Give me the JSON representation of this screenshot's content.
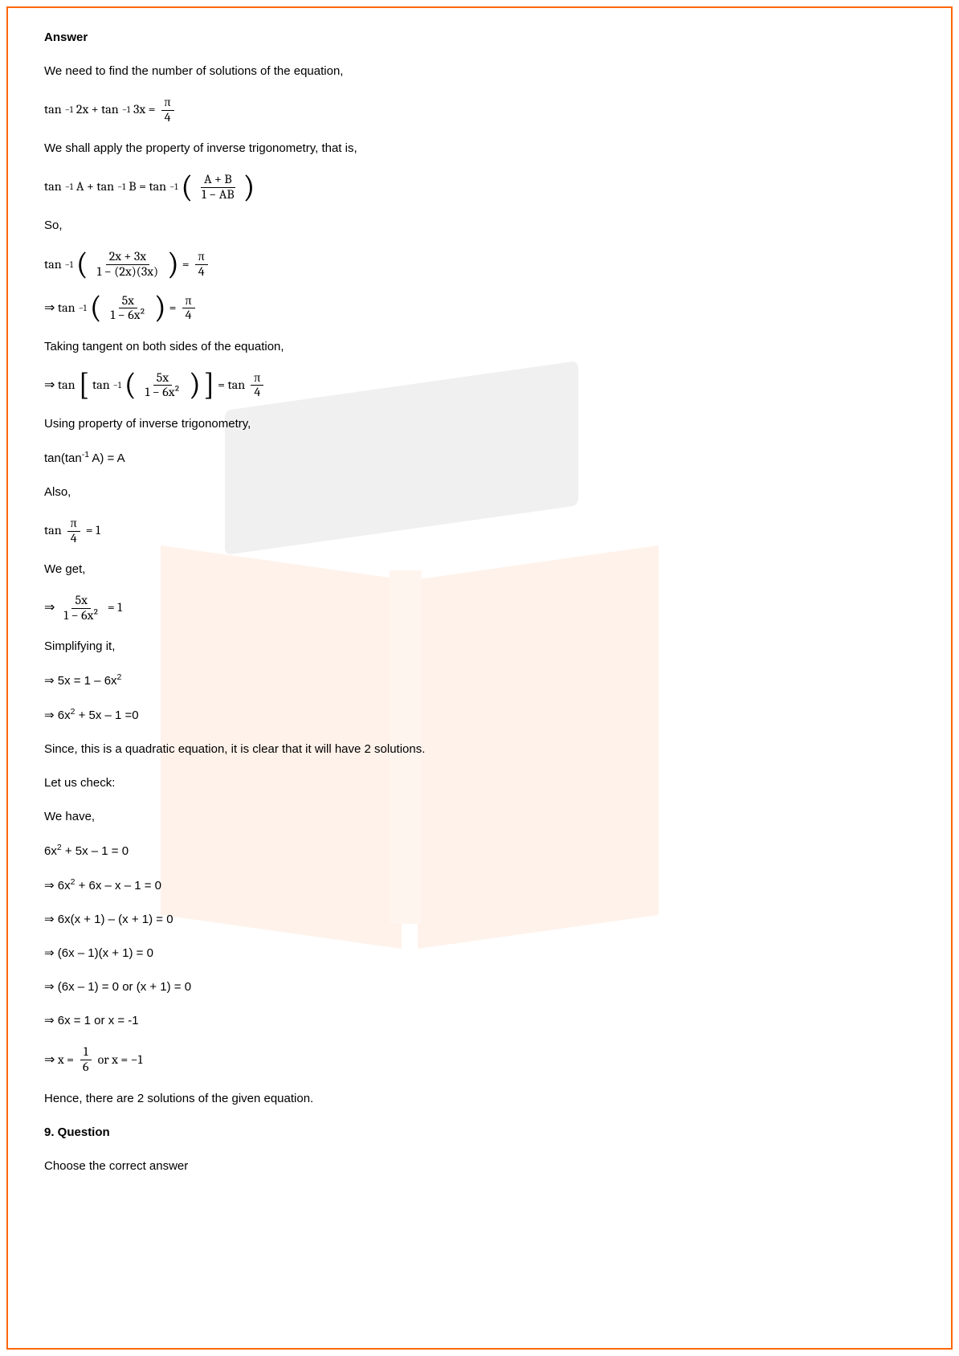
{
  "answer_heading": "Answer",
  "p1": "We need to find the number of solutions of the equation,",
  "eq1_lhs": "tan",
  "eq1_sup": "−1",
  "eq1_a": " 2x + tan",
  "eq1_b": " 3x = ",
  "eq1_frac_num": "π",
  "eq1_frac_den": "4",
  "p2": "We shall apply the property of inverse trigonometry, that is,",
  "eq2_a": " A + tan",
  "eq2_b": " B = tan",
  "eq2_frac_num": "A + B",
  "eq2_frac_den": "1 − AB",
  "p3": "So,",
  "eq3_frac_num": "2x + 3x",
  "eq3_frac_den": "1 − (2x)(3x)",
  "eq3_rhs_num": "π",
  "eq3_rhs_den": "4",
  "eq4_arrow": "⇒ tan",
  "eq4_frac_num": "5x",
  "eq4_frac_den": "1 − 6x²",
  "eq4_eq": " = ",
  "p4": "Taking tangent on both sides of the equation,",
  "eq5_pre": "⇒ tan",
  "eq5_mid": "tan",
  "eq5_rhs": " = tan",
  "p5": "Using property of inverse trigonometry,",
  "eq6": "tan(tan",
  "eq6_b": " A) = A",
  "p6": "Also,",
  "eq7_a": "tan",
  "eq7_eq": " = 1",
  "p7": "We get,",
  "eq8_pre": "⇒ ",
  "eq8_eq": " = 1",
  "p8": "Simplifying it,",
  "eq9": "⇒ 5x = 1 – 6x",
  "eq10": "⇒ 6x",
  "eq10_b": " + 5x – 1 =0",
  "p9": "Since, this is a quadratic equation, it is clear that it will have 2 solutions.",
  "p10": "Let us check:",
  "p11": "We have,",
  "eq11": "6x",
  "eq11_b": " + 5x – 1 = 0",
  "eq12": "⇒ 6x",
  "eq12_b": " + 6x – x – 1 = 0",
  "eq13": "⇒ 6x(x + 1) – (x + 1) = 0",
  "eq14": "⇒ (6x – 1)(x + 1) = 0",
  "eq15": "⇒ (6x – 1) = 0 or (x + 1) = 0",
  "eq16": "⇒ 6x = 1 or x = -1",
  "eq17_pre": "⇒ x = ",
  "eq17_num": "1",
  "eq17_den": "6",
  "eq17_post": " or x = −1",
  "p12": "Hence, there are 2 solutions of the given equation.",
  "q_heading": "9. Question",
  "p13": "Choose the correct answer",
  "sup2": "2",
  "supm1": "-1"
}
